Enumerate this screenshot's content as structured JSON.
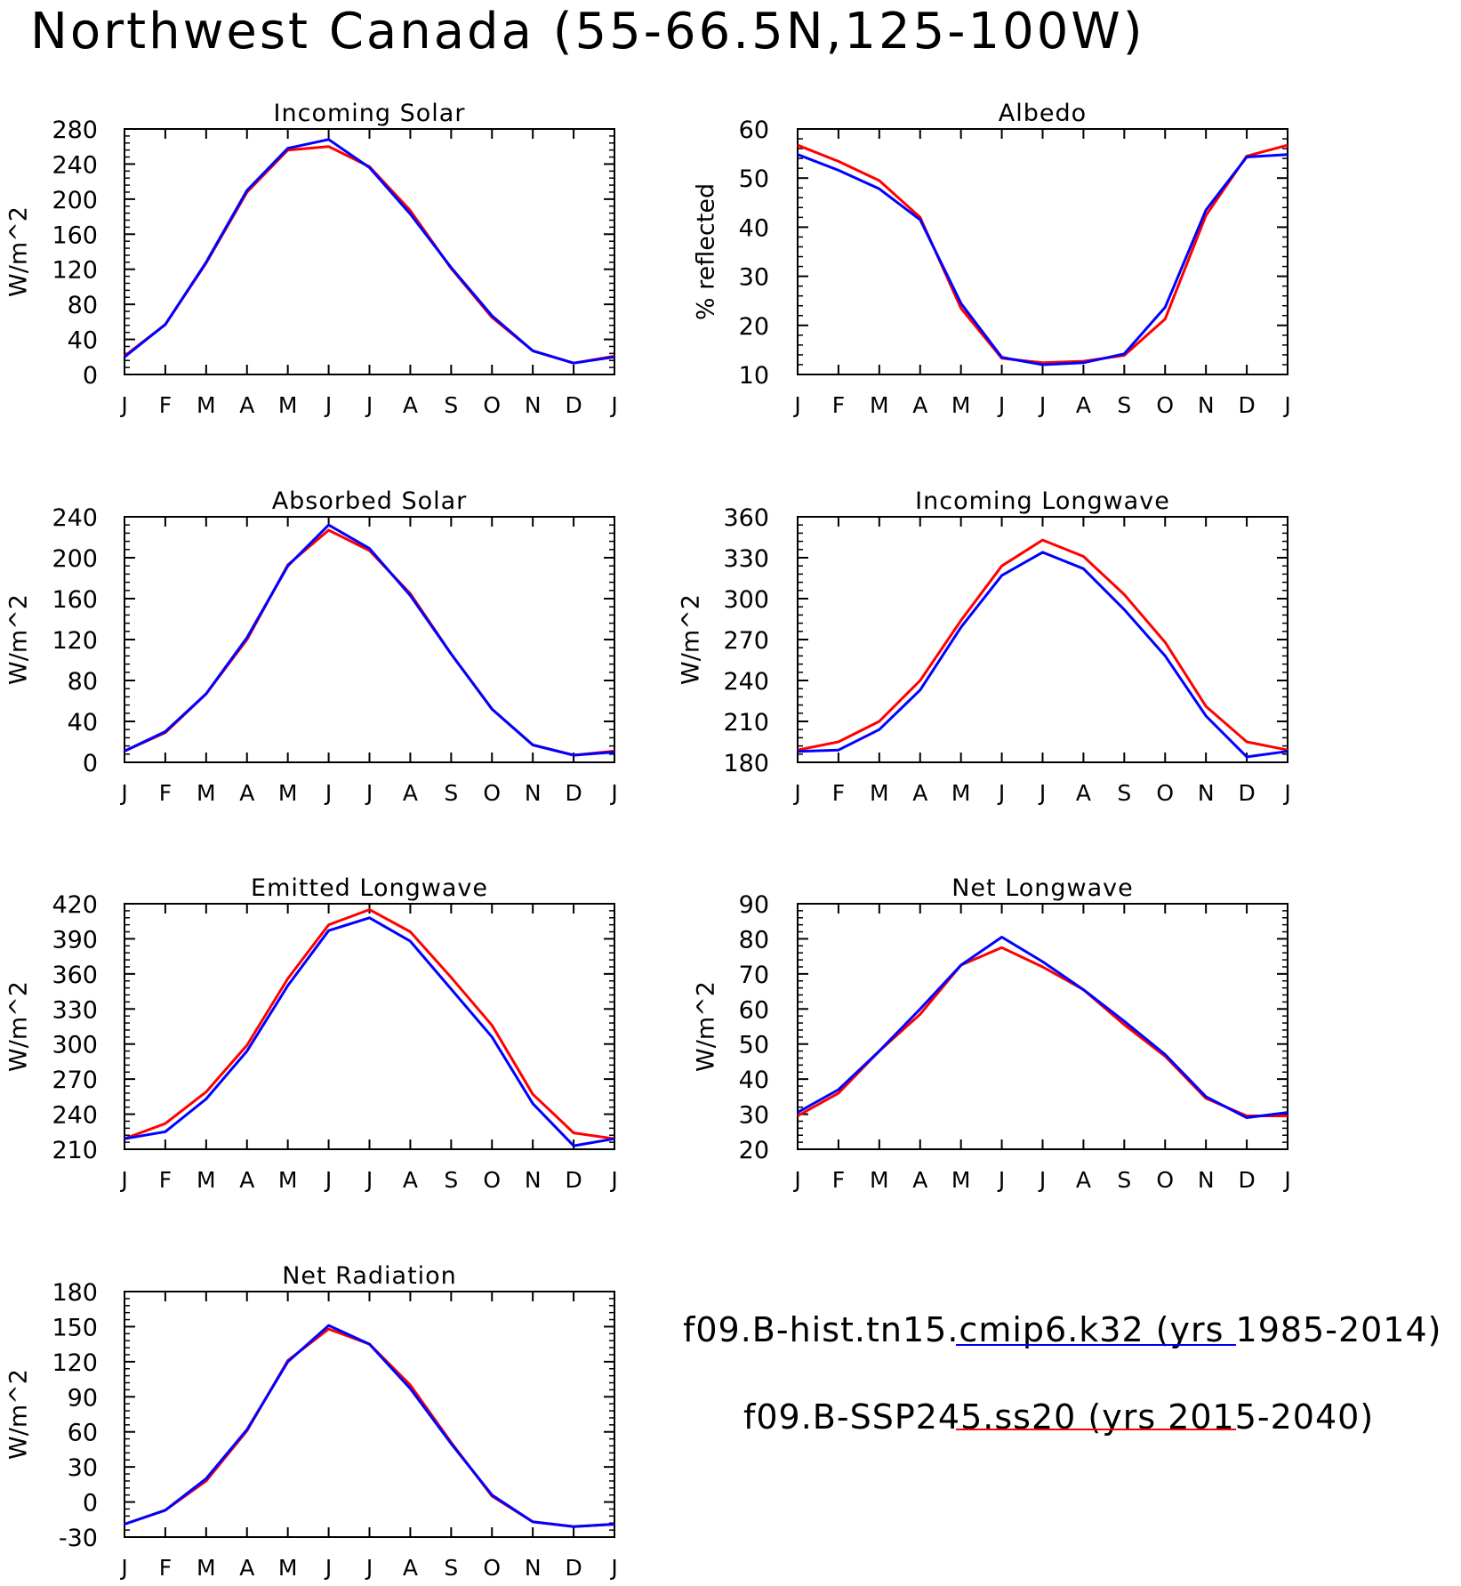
{
  "title": "Northwest Canada (55-66.5N,125-100W)",
  "colors": {
    "hist": "#0000ff",
    "ssp": "#ff0000"
  },
  "legend": [
    {
      "label": "f09.B-hist.tn15.cmip6.k32 (yrs 1985-2014)",
      "color": "#0000ff"
    },
    {
      "label": "f09.B-SSP245.ss20 (yrs 2015-2040)",
      "color": "#ff0000"
    }
  ],
  "chart_data": [
    {
      "type": "line",
      "title": "Incoming Solar",
      "ylabel": "W/m^2",
      "categories": [
        "J",
        "F",
        "M",
        "A",
        "M",
        "J",
        "J",
        "A",
        "S",
        "O",
        "N",
        "D",
        "J"
      ],
      "ylim": [
        0,
        280
      ],
      "yticks": [
        0,
        40,
        80,
        120,
        160,
        200,
        240,
        280
      ],
      "series": [
        {
          "color": "#0000ff",
          "values": [
            20,
            57,
            128,
            210,
            258,
            268,
            236,
            183,
            122,
            67,
            27,
            13,
            20
          ]
        },
        {
          "color": "#ff0000",
          "values": [
            21,
            57,
            127,
            208,
            256,
            260,
            237,
            187,
            121,
            65,
            27,
            13,
            21
          ]
        }
      ]
    },
    {
      "type": "line",
      "title": "Albedo",
      "ylabel": "% reflected",
      "categories": [
        "J",
        "F",
        "M",
        "A",
        "M",
        "J",
        "J",
        "A",
        "S",
        "O",
        "N",
        "D",
        "J"
      ],
      "ylim": [
        10,
        60
      ],
      "yticks": [
        10,
        20,
        30,
        40,
        50,
        60
      ],
      "series": [
        {
          "color": "#0000ff",
          "values": [
            54.8,
            51.6,
            47.8,
            41.5,
            24.5,
            13.5,
            12.0,
            12.4,
            14.2,
            23.7,
            43.5,
            54.3,
            54.8
          ]
        },
        {
          "color": "#ff0000",
          "values": [
            56.7,
            53.4,
            49.5,
            42.0,
            23.5,
            13.3,
            12.4,
            12.7,
            13.9,
            21.3,
            42.4,
            54.5,
            56.7
          ]
        }
      ]
    },
    {
      "type": "line",
      "title": "Absorbed Solar",
      "ylabel": "W/m^2",
      "categories": [
        "J",
        "F",
        "M",
        "A",
        "M",
        "J",
        "J",
        "A",
        "S",
        "O",
        "N",
        "D",
        "J"
      ],
      "ylim": [
        0,
        240
      ],
      "yticks": [
        0,
        40,
        80,
        120,
        160,
        200,
        240
      ],
      "series": [
        {
          "color": "#0000ff",
          "values": [
            11,
            30,
            67,
            122,
            192,
            232,
            209,
            163,
            106,
            52,
            17,
            7,
            10
          ]
        },
        {
          "color": "#ff0000",
          "values": [
            11,
            29,
            67,
            120,
            193,
            227,
            207,
            165,
            106,
            52,
            17,
            7,
            11
          ]
        }
      ]
    },
    {
      "type": "line",
      "title": "Incoming Longwave",
      "ylabel": "W/m^2",
      "categories": [
        "J",
        "F",
        "M",
        "A",
        "M",
        "J",
        "J",
        "A",
        "S",
        "O",
        "N",
        "D",
        "J"
      ],
      "ylim": [
        180,
        360
      ],
      "yticks": [
        180,
        210,
        240,
        270,
        300,
        330,
        360
      ],
      "series": [
        {
          "color": "#0000ff",
          "values": [
            188,
            189,
            204,
            233,
            279,
            317,
            334,
            322,
            292,
            258,
            214,
            184,
            188
          ]
        },
        {
          "color": "#ff0000",
          "values": [
            189,
            195,
            210,
            240,
            284,
            324,
            343,
            331,
            303,
            268,
            221,
            195,
            189
          ]
        }
      ]
    },
    {
      "type": "line",
      "title": "Emitted Longwave",
      "ylabel": "W/m^2",
      "categories": [
        "J",
        "F",
        "M",
        "A",
        "M",
        "J",
        "J",
        "A",
        "S",
        "O",
        "N",
        "D",
        "J"
      ],
      "ylim": [
        210,
        420
      ],
      "yticks": [
        210,
        240,
        270,
        300,
        330,
        360,
        390,
        420
      ],
      "series": [
        {
          "color": "#0000ff",
          "values": [
            219,
            225,
            253,
            294,
            350,
            397,
            408,
            388,
            347,
            306,
            249,
            213,
            219
          ]
        },
        {
          "color": "#ff0000",
          "values": [
            219,
            232,
            259,
            299,
            356,
            402,
            415,
            396,
            357,
            316,
            257,
            224,
            219
          ]
        }
      ]
    },
    {
      "type": "line",
      "title": "Net Longwave",
      "ylabel": "W/m^2",
      "categories": [
        "J",
        "F",
        "M",
        "A",
        "M",
        "J",
        "J",
        "A",
        "S",
        "O",
        "N",
        "D",
        "J"
      ],
      "ylim": [
        20,
        90
      ],
      "yticks": [
        20,
        30,
        40,
        50,
        60,
        70,
        80,
        90
      ],
      "series": [
        {
          "color": "#0000ff",
          "values": [
            30.5,
            37,
            48,
            60,
            72.5,
            80.5,
            73.5,
            65.5,
            56.5,
            47,
            35,
            29,
            30.5
          ]
        },
        {
          "color": "#ff0000",
          "values": [
            29.5,
            36,
            48,
            58.5,
            72.5,
            77.5,
            72,
            65.5,
            55.5,
            46.5,
            34.5,
            29.5,
            29.5
          ]
        }
      ]
    },
    {
      "type": "line",
      "title": "Net Radiation",
      "ylabel": "W/m^2",
      "categories": [
        "J",
        "F",
        "M",
        "A",
        "M",
        "J",
        "J",
        "A",
        "S",
        "O",
        "N",
        "D",
        "J"
      ],
      "ylim": [
        -30,
        180
      ],
      "yticks": [
        -30,
        0,
        30,
        60,
        90,
        120,
        150,
        180
      ],
      "series": [
        {
          "color": "#0000ff",
          "values": [
            -19,
            -7,
            20,
            62,
            120,
            151,
            135,
            97,
            50,
            6,
            -17,
            -21,
            -19
          ]
        },
        {
          "color": "#ff0000",
          "values": [
            -19,
            -7,
            18,
            61,
            121,
            148,
            135,
            100,
            51,
            5,
            -17,
            -21,
            -19
          ]
        }
      ]
    }
  ]
}
